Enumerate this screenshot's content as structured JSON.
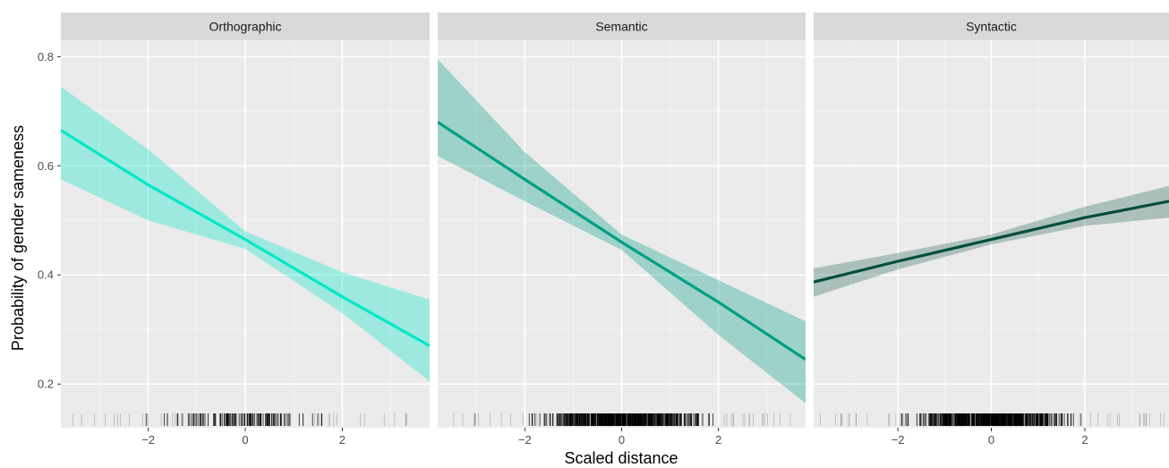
{
  "chart_data": {
    "type": "line",
    "xlabel": "Scaled distance",
    "ylabel": "Probability of gender sameness",
    "xlim": [
      -3.8,
      3.8
    ],
    "ylim": [
      0.12,
      0.83
    ],
    "x_ticks": [
      -2,
      0,
      2
    ],
    "y_ticks": [
      0.2,
      0.4,
      0.6,
      0.8
    ],
    "x_tick_labels": [
      "−2",
      "0",
      "2"
    ],
    "y_tick_labels": [
      "0.2",
      "0.4",
      "0.6",
      "0.8"
    ],
    "grid": true,
    "rug": true,
    "panels": [
      {
        "label": "Orthographic",
        "color": "#00e6c8",
        "band_color": "#00e6c8",
        "x": [
          -3.8,
          -2,
          0,
          2,
          3.8
        ],
        "y": [
          0.665,
          0.565,
          0.465,
          0.36,
          0.27
        ],
        "lower": [
          0.575,
          0.5,
          0.448,
          0.33,
          0.205
        ],
        "upper": [
          0.745,
          0.63,
          0.48,
          0.405,
          0.355
        ],
        "rug": {
          "min": -3.6,
          "max": 3.6,
          "dense_min": -2.4,
          "dense_max": 2.2,
          "dense_count": 110,
          "sparse_count": 40
        }
      },
      {
        "label": "Semantic",
        "color": "#009e86",
        "band_color": "#009e86",
        "x": [
          -3.8,
          -2,
          0,
          2,
          3.8
        ],
        "y": [
          0.68,
          0.575,
          0.46,
          0.35,
          0.245
        ],
        "lower": [
          0.618,
          0.535,
          0.446,
          0.29,
          0.165
        ],
        "upper": [
          0.795,
          0.625,
          0.474,
          0.39,
          0.315
        ],
        "rug": {
          "min": -3.7,
          "max": 3.7,
          "dense_min": -2.3,
          "dense_max": 2.3,
          "dense_count": 500,
          "sparse_count": 60
        }
      },
      {
        "label": "Syntactic",
        "color": "#004d3d",
        "band_color": "#2e6a5c",
        "x": [
          -3.8,
          -2,
          0,
          2,
          3.8
        ],
        "y": [
          0.387,
          0.425,
          0.465,
          0.505,
          0.535
        ],
        "lower": [
          0.36,
          0.41,
          0.456,
          0.49,
          0.505
        ],
        "upper": [
          0.412,
          0.44,
          0.474,
          0.525,
          0.563
        ],
        "rug": {
          "min": -3.7,
          "max": 3.7,
          "dense_min": -2.4,
          "dense_max": 2.4,
          "dense_count": 500,
          "sparse_count": 60
        }
      }
    ]
  }
}
